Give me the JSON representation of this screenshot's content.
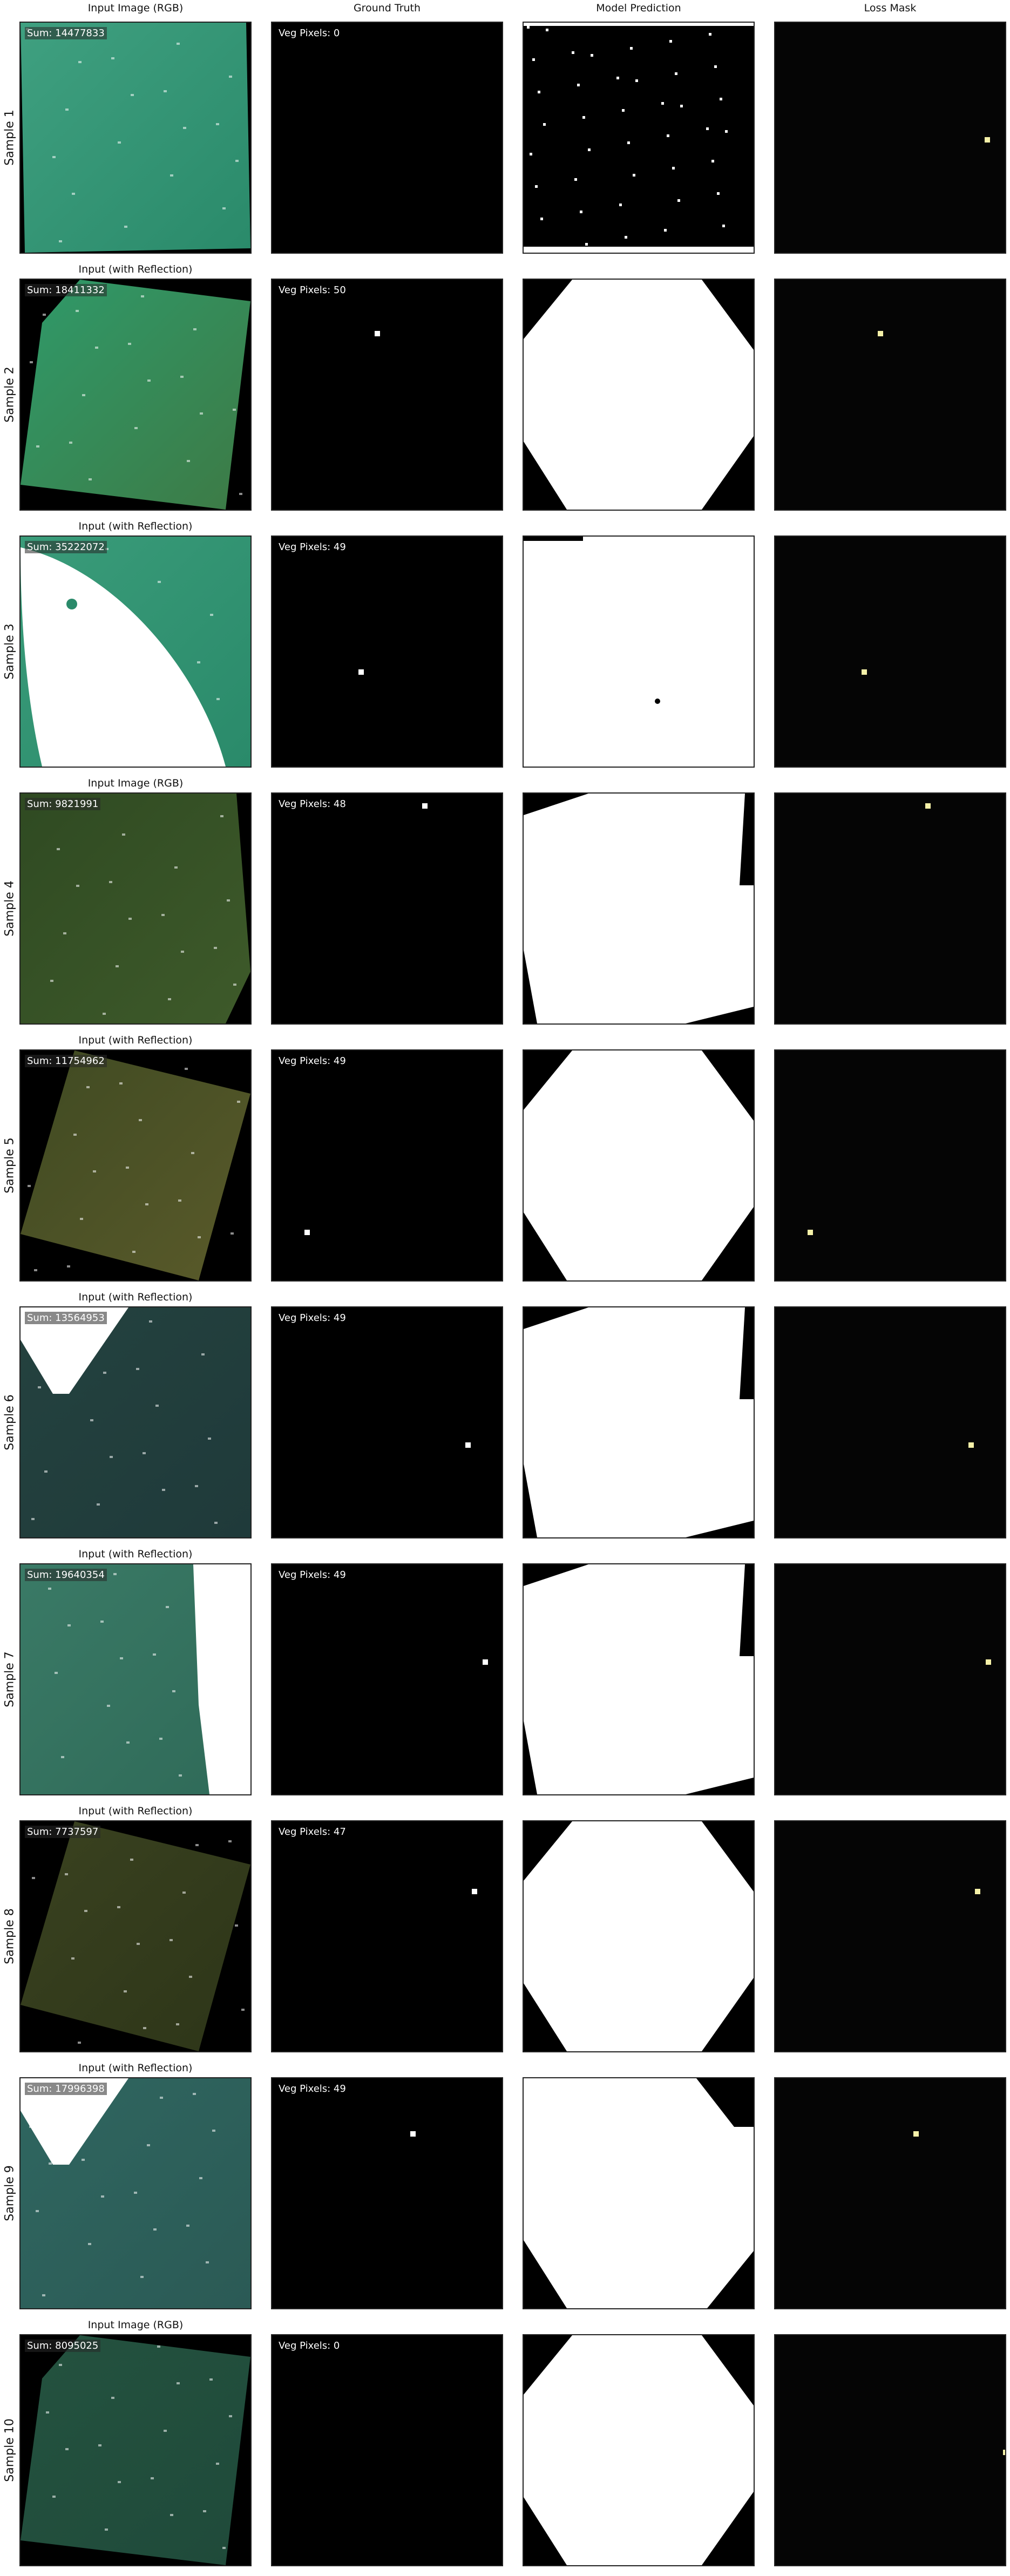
{
  "columns": [
    "Input Image (RGB)",
    "Ground Truth",
    "Model Prediction",
    "Loss Mask"
  ],
  "colors": {
    "background": "#ffffff",
    "mask_black": "#000000",
    "mask_white": "#ffffff",
    "loss_highlight": "#f5f1a8"
  },
  "samples": [
    {
      "label": "Sample 1",
      "input_title": "",
      "sum_label": "Sum: 14477833",
      "veg_label": "Veg Pixels: 0",
      "input_tone": "#2a8a6a",
      "input_tone2": "#3fa080"
    },
    {
      "label": "Sample 2",
      "input_title": "Input (with Reflection)",
      "sum_label": "Sum: 18411332",
      "veg_label": "Veg Pixels: 50",
      "input_tone": "#3d7a45",
      "input_tone2": "#2f9a6a"
    },
    {
      "label": "Sample 3",
      "input_title": "Input (with Reflection)",
      "sum_label": "Sum: 35222072",
      "veg_label": "Veg Pixels: 49",
      "input_tone": "#2a8a6a",
      "input_tone2": "#3a9c7a"
    },
    {
      "label": "Sample 4",
      "input_title": "Input Image (RGB)",
      "sum_label": "Sum: 9821991",
      "veg_label": "Veg Pixels: 48",
      "input_tone": "#3e5a2a",
      "input_tone2": "#2f4a22"
    },
    {
      "label": "Sample 5",
      "input_title": "Input (with Reflection)",
      "sum_label": "Sum: 11754962",
      "veg_label": "Veg Pixels: 49",
      "input_tone": "#5a5a2a",
      "input_tone2": "#3f4a22"
    },
    {
      "label": "Sample 6",
      "input_title": "Input (with Reflection)",
      "sum_label": "Sum: 13564953",
      "veg_label": "Veg Pixels: 49",
      "input_tone": "#1f3a3a",
      "input_tone2": "#24423f"
    },
    {
      "label": "Sample 7",
      "input_title": "Input (with Reflection)",
      "sum_label": "Sum: 19640354",
      "veg_label": "Veg Pixels: 49",
      "input_tone": "#2f6a58",
      "input_tone2": "#3a7a66"
    },
    {
      "label": "Sample 8",
      "input_title": "Input (with Reflection)",
      "sum_label": "Sum: 7737597",
      "veg_label": "Veg Pixels: 47",
      "input_tone": "#2d3518",
      "input_tone2": "#3a4220"
    },
    {
      "label": "Sample 9",
      "input_title": "Input (with Reflection)",
      "sum_label": "Sum: 17996398",
      "veg_label": "Veg Pixels: 49",
      "input_tone": "#2b5a55",
      "input_tone2": "#2f6660"
    },
    {
      "label": "Sample 10",
      "input_title": "Input Image (RGB)",
      "sum_label": "Sum: 8095025",
      "veg_label": "Veg Pixels: 0",
      "input_tone": "#1f4a3a",
      "input_tone2": "#24523f"
    }
  ]
}
